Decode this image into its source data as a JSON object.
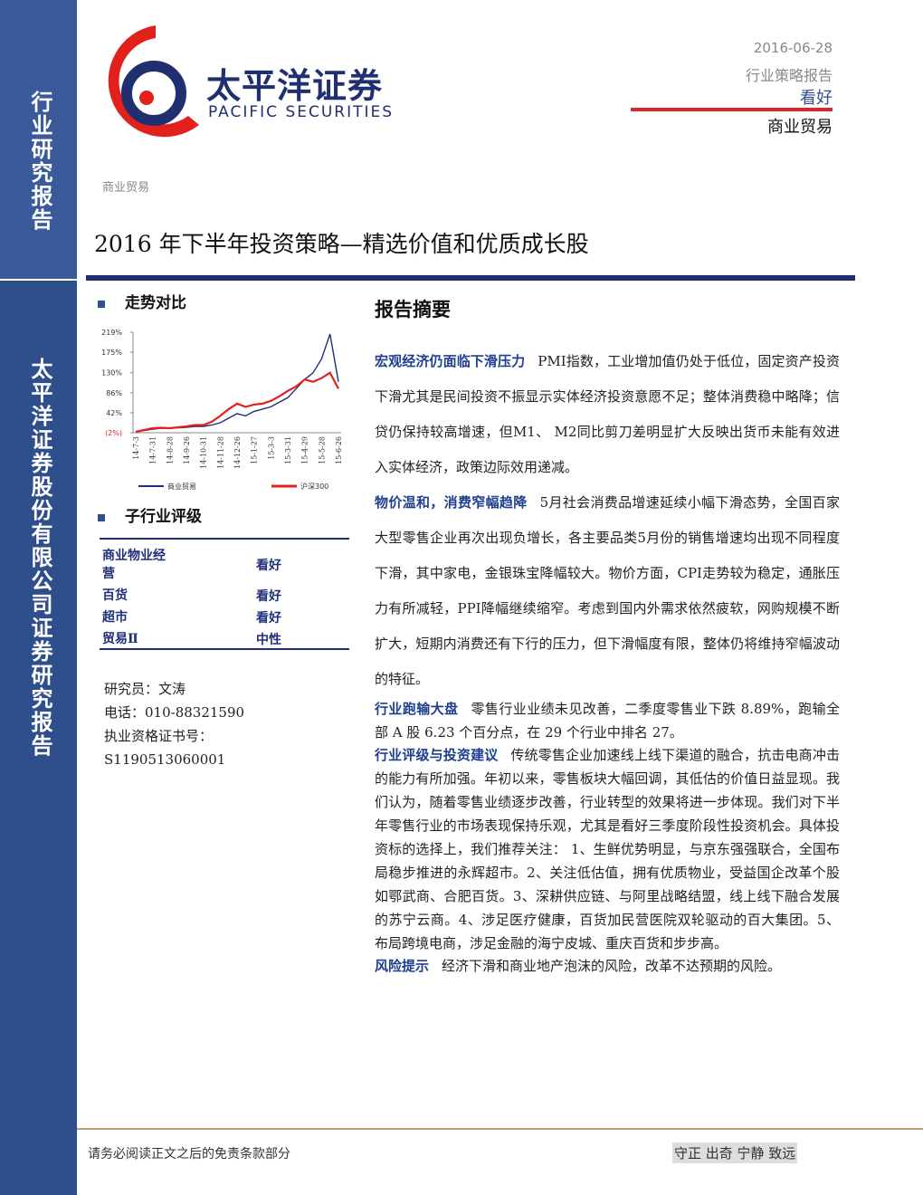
{
  "sidebar": {
    "top": "行业研究报告",
    "bottom": "太平洋证券股份有限公司证券研究报告"
  },
  "header": {
    "brand_cn": "太平洋证券",
    "brand_en": "PACIFIC SECURITIES",
    "date": "2016-06-28",
    "report_type": "行业策略报告",
    "rating": "看好",
    "industry": "商业贸易"
  },
  "category": "商业贸易",
  "title": "2016 年下半年投资策略—精选价值和优质成长股",
  "trend": {
    "heading": "走势对比",
    "chart": {
      "type": "line",
      "categories": [
        "14-7-3",
        null,
        "14-7-31",
        null,
        "14-8-28",
        null,
        "14-9-26",
        null,
        "14-10-31",
        null,
        "14-11-28",
        null,
        "14-12-26",
        null,
        "15-1-27",
        null,
        "15-3-3",
        null,
        "15-3-31",
        null,
        "15-4-29",
        null,
        "15-5-28",
        null,
        "15-6-26"
      ],
      "ylim": [
        -2,
        219
      ],
      "yticks": [
        {
          "value": 219,
          "label": "219%"
        },
        {
          "value": 175,
          "label": "175%"
        },
        {
          "value": 130,
          "label": "130%"
        },
        {
          "value": 86,
          "label": "86%"
        },
        {
          "value": 42,
          "label": "42%"
        },
        {
          "value": -2,
          "label": "(2%)"
        }
      ],
      "series": [
        {
          "name": "商业贸易",
          "color": "#1f2f7a",
          "values": [
            0,
            3,
            6,
            8,
            8,
            9,
            10,
            12,
            12,
            15,
            20,
            30,
            40,
            35,
            45,
            50,
            55,
            65,
            75,
            95,
            115,
            130,
            160,
            215,
            110
          ]
        },
        {
          "name": "沪深300",
          "color": "#e3211c",
          "values": [
            0,
            4,
            8,
            9,
            8,
            10,
            12,
            15,
            15,
            22,
            35,
            50,
            62,
            55,
            60,
            62,
            68,
            78,
            90,
            100,
            115,
            110,
            118,
            130,
            95
          ]
        }
      ]
    }
  },
  "ratings": {
    "heading": "子行业评级",
    "rows": [
      [
        "商业物业经营",
        "看好"
      ],
      [
        "百货",
        "看好"
      ],
      [
        "超市",
        "看好"
      ],
      [
        "贸易Ⅱ",
        "中性"
      ]
    ]
  },
  "analyst": [
    "研究员：文涛",
    "电话：010-88321590",
    "执业资格证书号：",
    "S1190513060001"
  ],
  "summary": {
    "heading": "报告摘要",
    "paragraphs": [
      {
        "lead": "宏观经济仍面临下滑压力",
        "text": "PMI指数，工业增加值仍处于低位，固定资产投资下滑尤其是民间投资不振显示实体经济投资意愿不足；整体消费稳中略降；信贷仍保持较高增速，但M1、 M2同比剪刀差明显扩大反映出货币未能有效进入实体经济，政策边际效用递减。"
      },
      {
        "lead": "物价温和，消费窄幅趋降",
        "text": "5月社会消费品增速延续小幅下滑态势，全国百家大型零售企业再次出现负增长，各主要品类5月份的销售增速均出现不同程度下滑，其中家电，金银珠宝降幅较大。物价方面，CPI走势较为稳定，通胀压力有所减轻，PPI降幅继续缩窄。考虑到国内外需求依然疲软，网购规模不断扩大，短期内消费还有下行的压力，但下滑幅度有限，整体仍将维持窄幅波动的特征。"
      },
      {
        "lead": "行业跑输大盘",
        "text": "零售行业业绩未见改善，二季度零售业下跌 8.89%，跑输全部 A 股 6.23 个百分点，在 29 个行业中排名 27。"
      },
      {
        "lead": "行业评级与投资建议",
        "text": "传统零售企业加速线上线下渠道的融合，抗击电商冲击的能力有所加强。年初以来，零售板块大幅回调，其低估的价值日益显现。我们认为，随着零售业绩逐步改善，行业转型的效果将进一步体现。我们对下半年零售行业的市场表现保持乐观，尤其是看好三季度阶段性投资机会。具体投资标的选择上，我们推荐关注： 1、生鲜优势明显，与京东强强联合，全国布局稳步推进的永辉超市。2、关注低估值，拥有优质物业，受益国企改革个股如鄂武商、合肥百货。3、深耕供应链、与阿里战略结盟，线上线下融合发展的苏宁云商。4、涉足医疗健康，百货加民营医院双轮驱动的百大集团。5、布局跨境电商，涉足金融的海宁皮城、重庆百货和步步高。"
      },
      {
        "lead": "风险提示",
        "text": "经济下滑和商业地产泡沫的风险，改革不达预期的风险。"
      }
    ]
  },
  "footer": {
    "disclaimer": "请务必阅读正文之后的免责条款部分",
    "motto": "守正 出奇 宁静 致远"
  }
}
